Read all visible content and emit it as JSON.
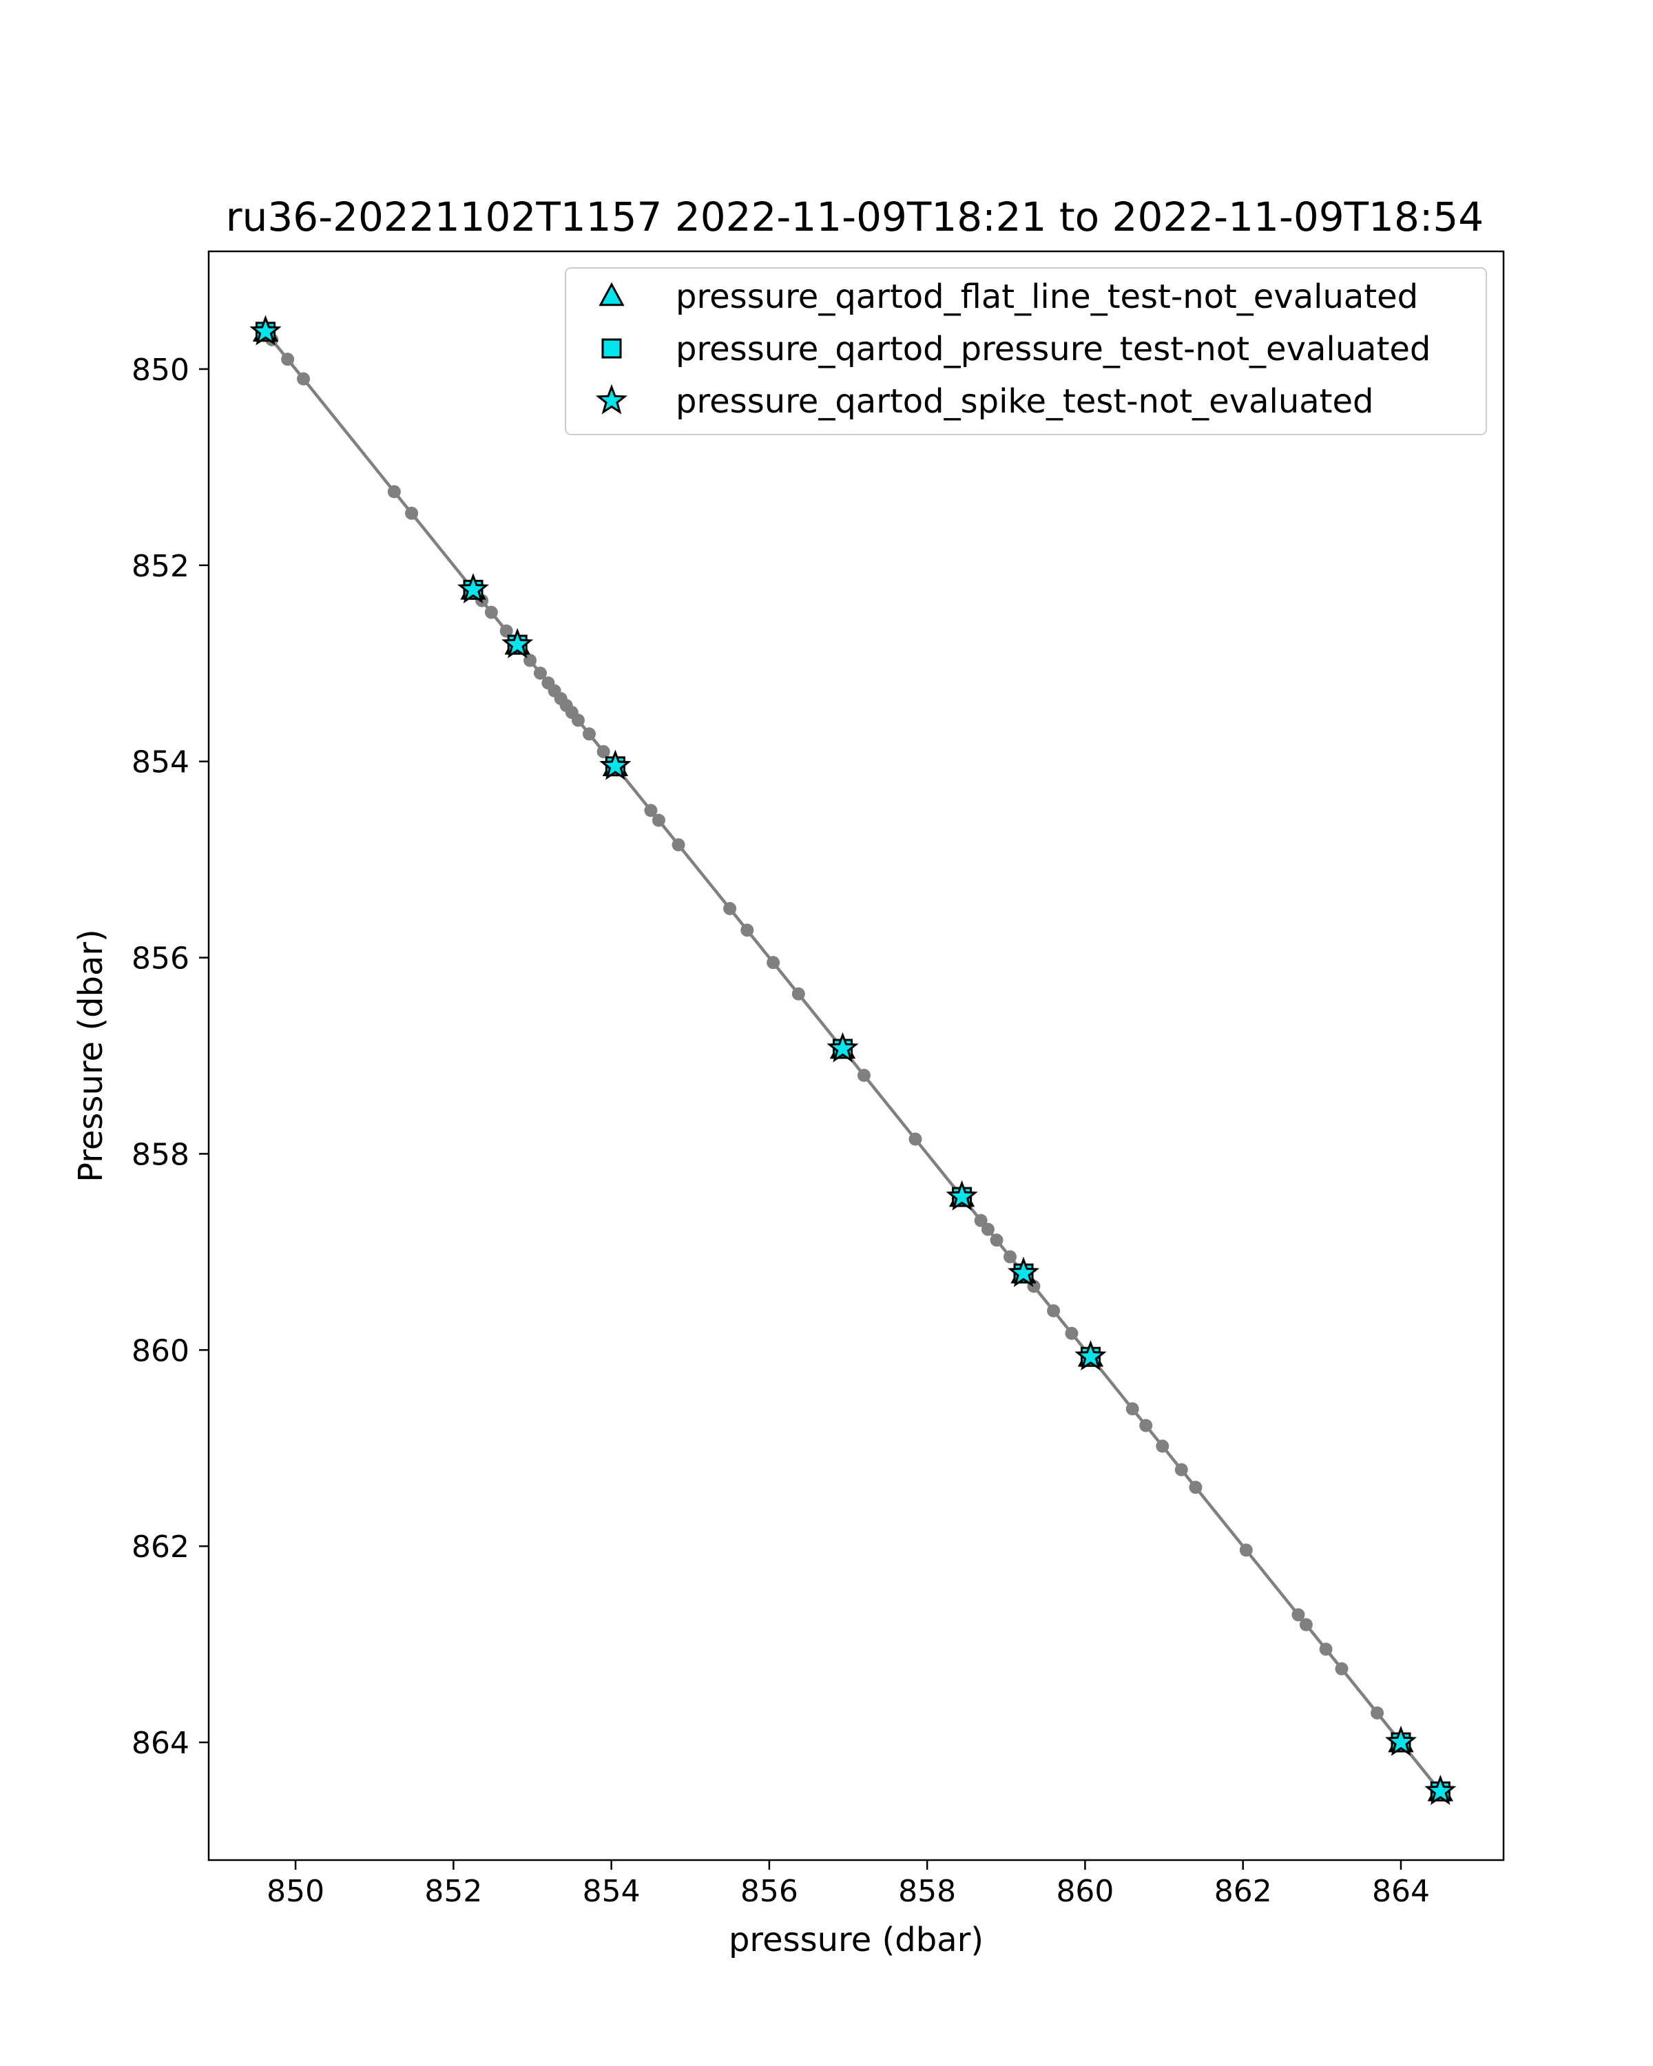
{
  "chart_data": {
    "type": "scatter",
    "title": "ru36-20221102T1157 2022-11-09T18:21 to 2022-11-09T18:54",
    "xlabel": "pressure (dbar)",
    "ylabel": "Pressure (dbar)",
    "xlim": [
      848.9,
      865.3
    ],
    "ylim": [
      865.2,
      848.8
    ],
    "y_inverted": true,
    "grid": false,
    "legend_position": "top-right",
    "x_ticks": [
      850,
      852,
      854,
      856,
      858,
      860,
      862,
      864
    ],
    "y_ticks": [
      850,
      852,
      854,
      856,
      858,
      860,
      862,
      864
    ],
    "line_color": "#808080",
    "marker_fill": "#00e5ee",
    "profile": [
      849.6,
      849.7,
      849.9,
      850.1,
      851.25,
      851.47,
      852.25,
      852.36,
      852.48,
      852.67,
      852.81,
      852.97,
      853.1,
      853.2,
      853.28,
      853.36,
      853.43,
      853.5,
      853.58,
      853.72,
      853.9,
      854.05,
      854.5,
      854.6,
      854.85,
      855.5,
      855.72,
      856.05,
      856.37,
      856.95,
      857.2,
      857.85,
      858.45,
      858.68,
      858.77,
      858.88,
      859.05,
      859.2,
      859.35,
      859.6,
      859.83,
      860.05,
      860.6,
      860.77,
      860.98,
      861.22,
      861.4,
      862.04,
      862.7,
      862.8,
      863.05,
      863.25,
      863.7,
      864.0,
      864.5
    ],
    "series": [
      {
        "name": "pressure_qartod_flat_line_test-not_evaluated",
        "marker": "triangle",
        "values": [
          849.62,
          852.25,
          852.81,
          854.05,
          856.93,
          858.44,
          859.22,
          860.07,
          864.0,
          864.5
        ]
      },
      {
        "name": "pressure_qartod_pressure_test-not_evaluated",
        "marker": "square",
        "values": [
          849.62,
          852.25,
          852.81,
          854.05,
          856.93,
          858.44,
          859.22,
          860.07,
          864.0,
          864.5
        ]
      },
      {
        "name": "pressure_qartod_spike_test-not_evaluated",
        "marker": "star",
        "values": [
          849.62,
          852.25,
          852.81,
          854.05,
          856.93,
          858.44,
          859.22,
          860.07,
          864.0,
          864.5
        ]
      }
    ]
  }
}
